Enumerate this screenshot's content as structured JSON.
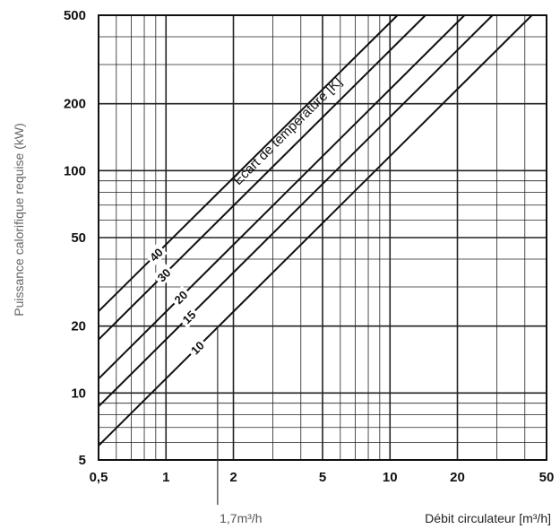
{
  "chart_data": {
    "type": "line",
    "xscale": "log",
    "yscale": "log",
    "xlim": [
      0.5,
      50
    ],
    "ylim": [
      5,
      500
    ],
    "grid": true,
    "xlabel": "Débit circulateur [m³/h]",
    "ylabel": "Puissance calorifique requise (kW)",
    "x_ticks": [
      "0,5",
      "1",
      "2",
      "5",
      "10",
      "20",
      "50"
    ],
    "y_ticks": [
      "5",
      "10",
      "20",
      "50",
      "100",
      "200",
      "500"
    ],
    "annotation": "Ecart de température [K]",
    "marker": {
      "x": 1.7,
      "label": "1,7m³/h"
    },
    "series": [
      {
        "name": "40",
        "x": [
          0.5,
          10.8
        ],
        "y": [
          23.3,
          500
        ]
      },
      {
        "name": "30",
        "x": [
          0.5,
          14.4
        ],
        "y": [
          17.4,
          500
        ]
      },
      {
        "name": "20",
        "x": [
          0.5,
          21.5
        ],
        "y": [
          11.6,
          500
        ]
      },
      {
        "name": "15",
        "x": [
          0.5,
          28.7
        ],
        "y": [
          8.7,
          500
        ]
      },
      {
        "name": "10",
        "x": [
          0.5,
          43.0
        ],
        "y": [
          5.8,
          500
        ]
      }
    ]
  }
}
